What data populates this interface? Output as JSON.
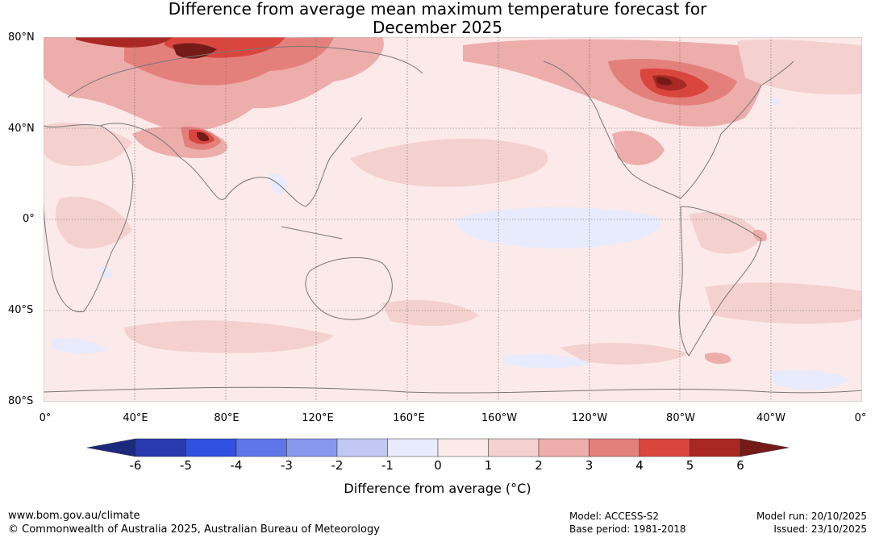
{
  "title": {
    "line1": "Difference from average mean maximum temperature forecast for",
    "line2": "December 2025"
  },
  "map": {
    "lat_labels": [
      "80°N",
      "40°N",
      "0°",
      "40°S",
      "80°S"
    ],
    "lon_labels": [
      "0°",
      "40°E",
      "80°E",
      "120°E",
      "160°E",
      "160°W",
      "120°W",
      "80°W",
      "40°W",
      "0°"
    ]
  },
  "colorbar": {
    "ticks": [
      "-6",
      "-5",
      "-4",
      "-3",
      "-2",
      "-1",
      "0",
      "1",
      "2",
      "3",
      "4",
      "5",
      "6"
    ],
    "colors": [
      "#283aad",
      "#2f50e0",
      "#5e76e8",
      "#8898ec",
      "#c1c8f4",
      "#e8ebfb",
      "#fbeae9",
      "#f4d1cf",
      "#edadab",
      "#e4807c",
      "#d9463e",
      "#a92823"
    ],
    "under_color": "#1c2a7e",
    "over_color": "#751b17",
    "label": "Difference from average (",
    "label_unit": "°C)"
  },
  "footer": {
    "website": "www.bom.gov.au/climate",
    "copyright": "© Commonwealth of Australia 2025, Australian Bureau of Meteorology",
    "model": "Model: ACCESS-S2",
    "base_period": "Base period: 1981-2018",
    "model_run": "Model run: 20/10/2025",
    "issued": "Issued: 23/10/2025"
  },
  "palette": {
    "ocean_base": "#fbeae9",
    "land_line": "#777777"
  }
}
